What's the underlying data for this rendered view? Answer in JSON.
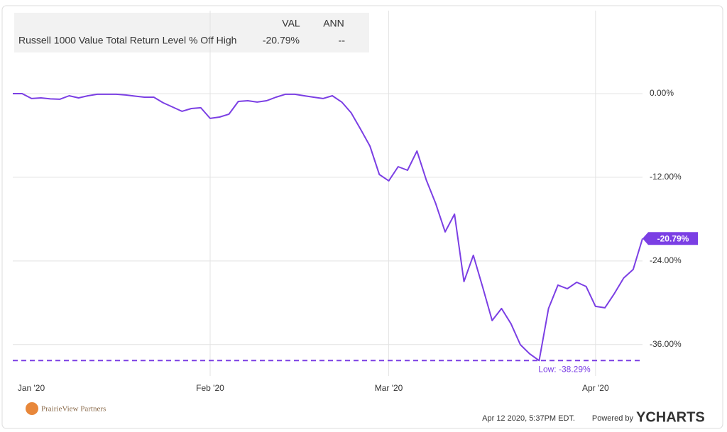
{
  "chart_data": {
    "type": "line",
    "legend_columns": [
      "VAL",
      "ANN"
    ],
    "categories": [
      "Jan '20",
      null,
      null,
      null,
      null,
      null,
      null,
      null,
      null,
      null,
      null,
      null,
      null,
      null,
      null,
      null,
      null,
      null,
      null,
      null,
      null,
      "Feb '20",
      null,
      null,
      null,
      null,
      null,
      null,
      null,
      null,
      null,
      null,
      null,
      null,
      null,
      null,
      null,
      null,
      null,
      null,
      "Mar '20",
      null,
      null,
      null,
      null,
      null,
      null,
      null,
      null,
      null,
      null,
      null,
      null,
      null,
      null,
      null,
      null,
      null,
      null,
      null,
      null,
      null,
      "Apr '20",
      null,
      null,
      null,
      null,
      null
    ],
    "series": [
      {
        "name": "Russell 1000 Value Total Return Level % Off High",
        "color": "#7b3fe4",
        "val": "-20.79%",
        "ann": "--",
        "values": [
          0,
          0,
          -0.71,
          -0.61,
          -0.76,
          -0.81,
          -0.31,
          -0.61,
          -0.31,
          -0.1,
          -0.1,
          -0.1,
          -0.2,
          -0.36,
          -0.51,
          -0.51,
          -1.32,
          -1.93,
          -2.54,
          -2.14,
          -2.03,
          -3.56,
          -3.36,
          -2.95,
          -1.12,
          -1.02,
          -1.22,
          -1.02,
          -0.51,
          -0.1,
          -0.1,
          -0.31,
          -0.51,
          -0.71,
          -0.31,
          -1.22,
          -2.75,
          -5.09,
          -7.53,
          -11.6,
          -12.51,
          -10.48,
          -10.99,
          -8.24,
          -12.41,
          -15.77,
          -19.84,
          -17.29,
          -26.96,
          -23.19,
          -27.77,
          -32.55,
          -30.82,
          -33.0,
          -36.01,
          -37.33,
          -38.29,
          -30.82,
          -27.47,
          -27.98,
          -27.06,
          -27.67,
          -30.52,
          -30.72,
          -28.69,
          -26.45,
          -25.23,
          -20.79
        ]
      }
    ],
    "ylim": [
      -40.5,
      11.9
    ],
    "yticks": [
      {
        "value": 0,
        "label": "0.00%"
      },
      {
        "value": -12,
        "label": "-12.00%"
      },
      {
        "value": -24,
        "label": "-24.00%"
      },
      {
        "value": -36,
        "label": "-36.00%"
      }
    ],
    "grid": true,
    "annotations": [
      {
        "value": -38.29,
        "label": "Low: -38.29%",
        "style": "dashed-line"
      },
      {
        "value": -20.79,
        "label": "-20.79%",
        "style": "end-tag"
      }
    ]
  },
  "footer": {
    "logo_text": "PrairieView Partners",
    "timestamp": "Apr 12 2020, 5:37PM EDT.",
    "powered_by": "Powered by",
    "brand": "YCHARTS"
  }
}
